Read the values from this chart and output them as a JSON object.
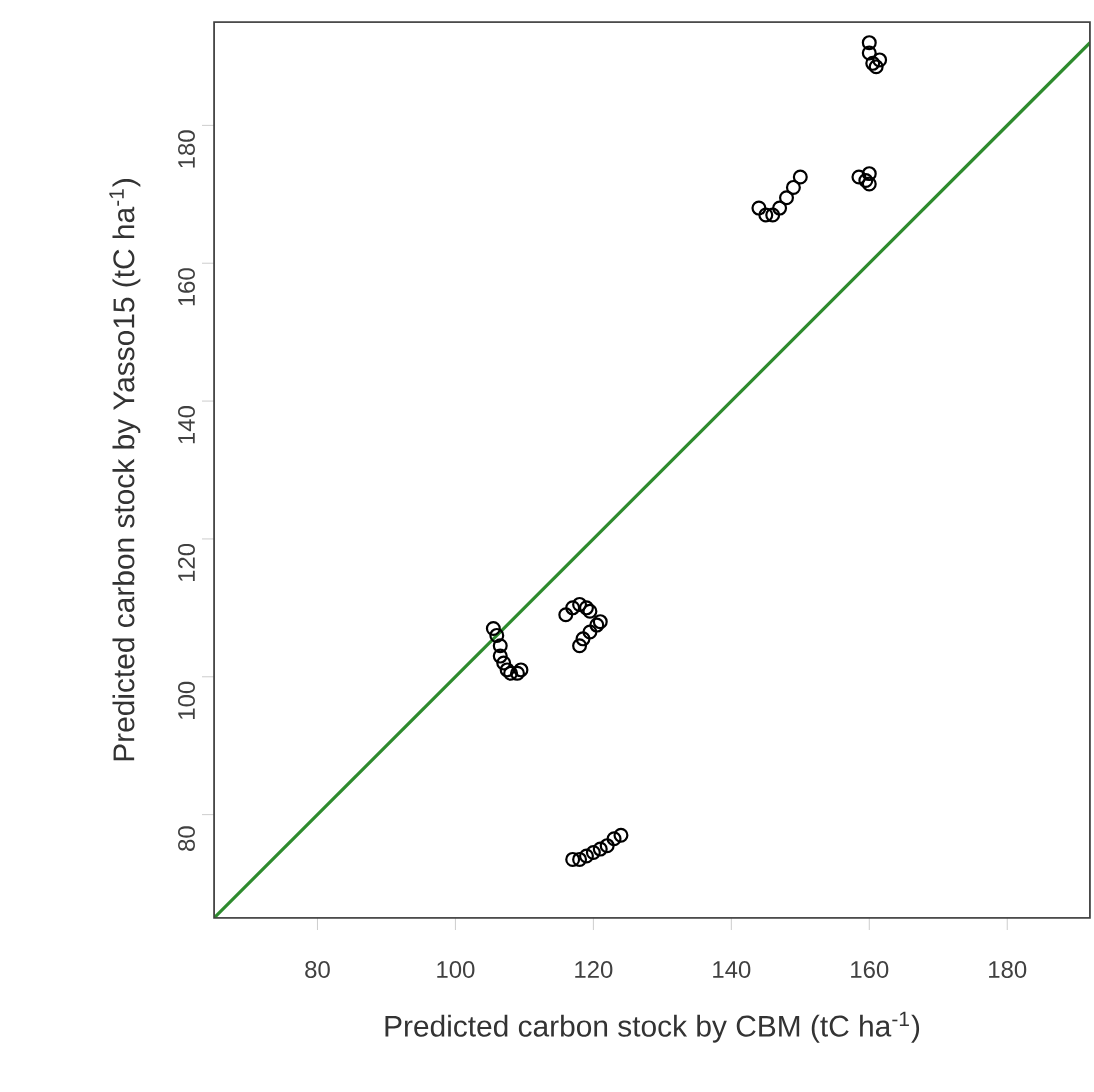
{
  "chart_data": {
    "type": "scatter",
    "xlabel": "Predicted carbon stock by CBM (tC ha$^{-1}$)",
    "ylabel": "Predicted carbon stock by Yasso15 (tC ha$^{-1}$)",
    "xlim": [
      65,
      192
    ],
    "ylim": [
      65,
      195
    ],
    "xticks": [
      80,
      100,
      120,
      140,
      160,
      180
    ],
    "yticks": [
      80,
      100,
      120,
      140,
      160,
      180
    ],
    "grid": false,
    "marker": "circle",
    "series": [
      {
        "color": "#000000",
        "x": [
          105.5,
          106,
          106.5,
          106.5,
          107,
          107.5,
          108,
          109,
          109.5,
          116,
          117,
          118,
          119,
          119.5,
          118,
          118.5,
          119.5,
          120.5,
          121,
          117,
          118,
          119,
          120,
          121,
          122,
          123,
          124,
          144,
          145,
          146,
          147,
          148,
          149,
          150,
          158.5,
          159.5,
          160,
          160,
          160,
          160,
          160.5,
          161,
          161.5
        ],
        "values": [
          107,
          106,
          104.5,
          103,
          102,
          101,
          100.5,
          100.5,
          101,
          109,
          110,
          110.5,
          110,
          109.5,
          104.5,
          105.5,
          106.5,
          107.5,
          108,
          73.5,
          73.5,
          74,
          74.5,
          75,
          75.5,
          76.5,
          77,
          168,
          167,
          167,
          168,
          169.5,
          171,
          172.5,
          172.5,
          172,
          171.5,
          173,
          192,
          190.5,
          189,
          188.5,
          189.5
        ]
      },
      {
        "type": "line",
        "color": "#2e8b2e",
        "x": [
          65,
          192
        ],
        "values": [
          65,
          192
        ],
        "marker": "none",
        "line_style": "solid"
      }
    ]
  }
}
